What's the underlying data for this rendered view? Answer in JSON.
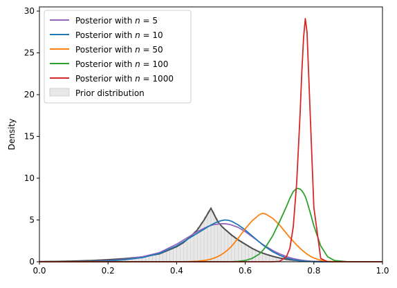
{
  "chart_data": {
    "type": "line",
    "title": "",
    "xlabel": "",
    "ylabel": "Density",
    "xlim": [
      0,
      1
    ],
    "ylim": [
      0,
      30.5
    ],
    "x_ticks": [
      0.0,
      0.2,
      0.4,
      0.6,
      0.8,
      1.0
    ],
    "x_tick_labels": [
      "0.0",
      "0.2",
      "0.4",
      "0.6",
      "0.8",
      "1.0"
    ],
    "y_ticks": [
      0,
      5,
      10,
      15,
      20,
      25,
      30
    ],
    "y_tick_labels": [
      "0",
      "5",
      "10",
      "15",
      "20",
      "25",
      "30"
    ],
    "grid": false,
    "legend_position": "top-left",
    "x": [
      0.0,
      0.05,
      0.1,
      0.15,
      0.2,
      0.25,
      0.3,
      0.35,
      0.4,
      0.42,
      0.44,
      0.46,
      0.48,
      0.49,
      0.5,
      0.51,
      0.52,
      0.53,
      0.54,
      0.55,
      0.56,
      0.58,
      0.6,
      0.62,
      0.64,
      0.65,
      0.66,
      0.68,
      0.7,
      0.72,
      0.73,
      0.74,
      0.75,
      0.76,
      0.765,
      0.77,
      0.775,
      0.78,
      0.79,
      0.8,
      0.82,
      0.84,
      0.86,
      0.9,
      0.95,
      1.0
    ],
    "series": [
      {
        "name": "Posterior with n = 5",
        "legend_prefix": "Posterior with ",
        "legend_var": "n",
        "legend_value": " = 5",
        "color": "#9467bd",
        "values": [
          0,
          0,
          0.01,
          0.05,
          0.13,
          0.3,
          0.6,
          1.1,
          2.1,
          2.6,
          3.1,
          3.6,
          4.0,
          4.2,
          4.35,
          4.45,
          4.5,
          4.55,
          4.55,
          4.5,
          4.4,
          4.1,
          3.6,
          3.0,
          2.4,
          2.1,
          1.85,
          1.35,
          0.95,
          0.62,
          0.5,
          0.38,
          0.3,
          0.22,
          0.19,
          0.16,
          0.13,
          0.11,
          0.07,
          0.04,
          0.01,
          0,
          0,
          0,
          0,
          0
        ]
      },
      {
        "name": "Posterior with n = 10",
        "legend_prefix": "Posterior with ",
        "legend_var": "n",
        "legend_value": " = 10",
        "color": "#1f77b4",
        "values": [
          0,
          0,
          0.01,
          0.04,
          0.1,
          0.25,
          0.5,
          1.0,
          1.9,
          2.4,
          2.9,
          3.4,
          3.9,
          4.15,
          4.4,
          4.6,
          4.8,
          4.92,
          5.0,
          4.97,
          4.85,
          4.4,
          3.8,
          3.1,
          2.4,
          2.05,
          1.75,
          1.2,
          0.78,
          0.45,
          0.34,
          0.25,
          0.18,
          0.12,
          0.1,
          0.08,
          0.06,
          0.05,
          0.03,
          0.01,
          0,
          0,
          0,
          0,
          0,
          0
        ]
      },
      {
        "name": "Posterior with n = 50",
        "legend_prefix": "Posterior with ",
        "legend_var": "n",
        "legend_value": " = 50",
        "color": "#ff7f0e",
        "values": [
          0,
          0,
          0,
          0,
          0,
          0,
          0,
          0,
          0,
          0.01,
          0.03,
          0.07,
          0.15,
          0.22,
          0.32,
          0.45,
          0.62,
          0.85,
          1.12,
          1.45,
          1.85,
          2.85,
          3.95,
          4.9,
          5.6,
          5.8,
          5.7,
          5.2,
          4.4,
          3.4,
          2.9,
          2.45,
          2.0,
          1.6,
          1.42,
          1.25,
          1.08,
          0.92,
          0.65,
          0.45,
          0.18,
          0.05,
          0.01,
          0,
          0,
          0
        ]
      },
      {
        "name": "Posterior with n = 100",
        "legend_prefix": "Posterior with ",
        "legend_var": "n",
        "legend_value": " = 100",
        "color": "#2ca02c",
        "values": [
          0,
          0,
          0,
          0,
          0,
          0,
          0,
          0,
          0,
          0,
          0,
          0,
          0,
          0,
          0,
          0,
          0,
          0,
          0,
          0,
          0.01,
          0.05,
          0.15,
          0.4,
          0.9,
          1.3,
          1.8,
          3.1,
          4.8,
          6.6,
          7.6,
          8.4,
          8.8,
          8.7,
          8.5,
          8.2,
          7.8,
          7.2,
          5.8,
          4.3,
          1.9,
          0.6,
          0.15,
          0,
          0,
          0
        ]
      },
      {
        "name": "Posterior with n = 1000",
        "legend_prefix": "Posterior with ",
        "legend_var": "n",
        "legend_value": " = 1000",
        "color": "#d62728",
        "values": [
          0,
          0,
          0,
          0,
          0,
          0,
          0,
          0,
          0,
          0,
          0,
          0,
          0,
          0,
          0,
          0,
          0,
          0,
          0,
          0,
          0,
          0,
          0,
          0,
          0,
          0,
          0,
          0,
          0.05,
          0.6,
          1.6,
          4.2,
          9.5,
          17.8,
          22.8,
          26.8,
          29.1,
          27.5,
          17.0,
          6.5,
          0.4,
          0.01,
          0,
          0,
          0,
          0
        ]
      }
    ],
    "prior": {
      "name": "Prior distribution",
      "fill_color": "#e8e8e8",
      "curve_color": "#4d4d4d",
      "values": [
        0.02,
        0.04,
        0.08,
        0.15,
        0.25,
        0.38,
        0.58,
        0.95,
        1.8,
        2.3,
        3.0,
        3.8,
        5.0,
        5.7,
        6.4,
        5.6,
        4.8,
        4.3,
        3.9,
        3.55,
        3.2,
        2.6,
        2.1,
        1.6,
        1.2,
        1.05,
        0.9,
        0.65,
        0.45,
        0.3,
        0.25,
        0.2,
        0.16,
        0.12,
        0.1,
        0.09,
        0.08,
        0.07,
        0.05,
        0.04,
        0.02,
        0.01,
        0.005,
        0,
        0,
        0
      ]
    }
  }
}
